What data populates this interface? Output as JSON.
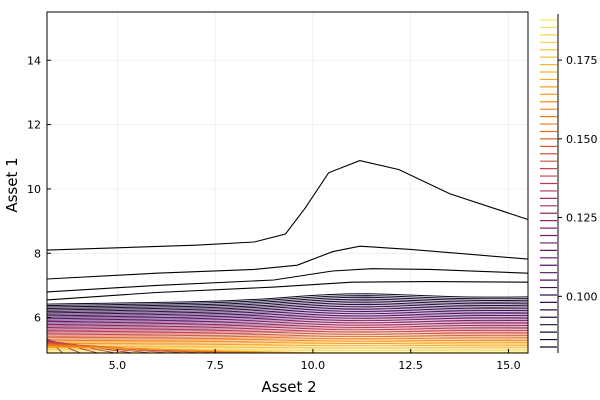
{
  "chart_data": {
    "type": "contour",
    "xlabel": "Asset 2",
    "ylabel": "Asset 1",
    "xlim": [
      3.2,
      15.5
    ],
    "ylim": [
      4.9,
      15.5
    ],
    "xticks": [
      5.0,
      7.5,
      10.0,
      12.5,
      15.0
    ],
    "xtick_labels": [
      "5.0",
      "7.5",
      "10.0",
      "12.5",
      "15.0"
    ],
    "yticks": [
      6,
      8,
      10,
      12,
      14
    ],
    "ytick_labels": [
      "6",
      "8",
      "10",
      "12",
      "14"
    ],
    "grid": true,
    "colorbar": {
      "range": [
        0.082,
        0.189
      ],
      "ticks": [
        0.1,
        0.125,
        0.15,
        0.175
      ],
      "tick_labels": [
        "0.100",
        "0.125",
        "0.150",
        "0.175"
      ],
      "palette": "inferno",
      "levels": 45
    },
    "contour_lines": [
      {
        "x": [
          3.2,
          5,
          7,
          8.5,
          9.3,
          9.8,
          10.4,
          11.2,
          12.2,
          13.5,
          15.5
        ],
        "y": [
          8.1,
          8.17,
          8.25,
          8.35,
          8.6,
          9.4,
          10.5,
          10.88,
          10.6,
          9.85,
          9.05
        ]
      },
      {
        "x": [
          3.2,
          6,
          8.5,
          9.6,
          10.5,
          11.2,
          12.5,
          15.5
        ],
        "y": [
          7.2,
          7.38,
          7.5,
          7.63,
          8.05,
          8.22,
          8.12,
          7.82
        ]
      },
      {
        "x": [
          3.2,
          6,
          9,
          10.5,
          11.5,
          13,
          15.5
        ],
        "y": [
          6.8,
          7.0,
          7.17,
          7.45,
          7.52,
          7.5,
          7.38
        ]
      },
      {
        "x": [
          3.2,
          6,
          9,
          11,
          13,
          15.5
        ],
        "y": [
          6.55,
          6.78,
          6.95,
          7.1,
          7.12,
          7.1
        ]
      }
    ]
  }
}
